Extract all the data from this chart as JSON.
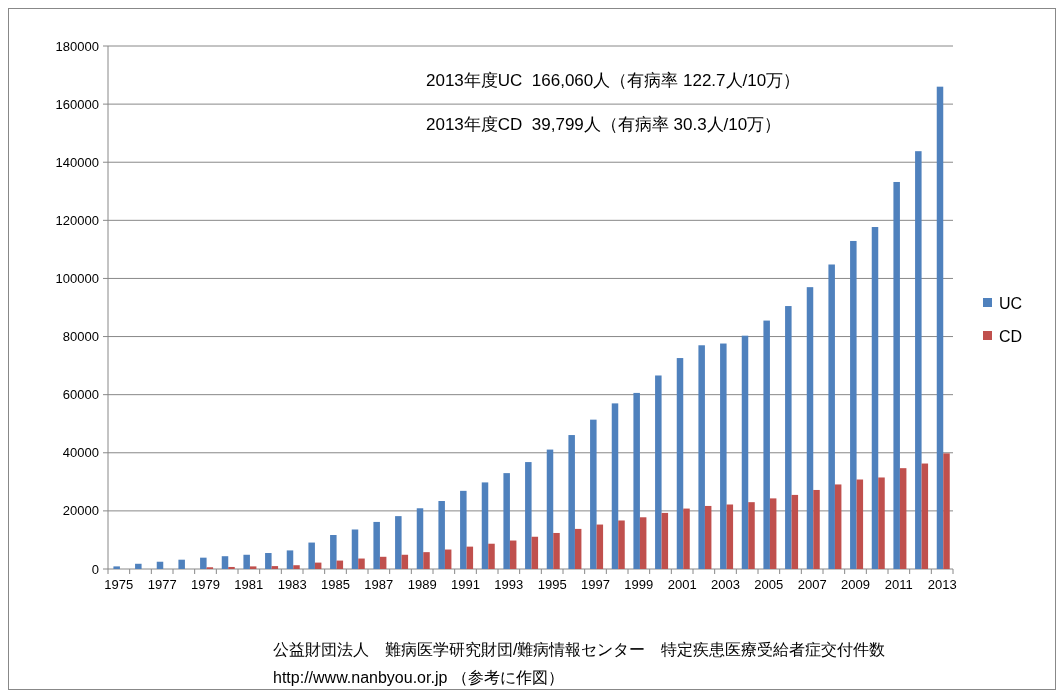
{
  "chart_data": {
    "type": "bar",
    "categories": [
      "1975",
      null,
      "1977",
      null,
      "1979",
      null,
      "1981",
      null,
      "1983",
      null,
      "1985",
      null,
      "1987",
      null,
      "1989",
      null,
      "1991",
      null,
      "1993",
      null,
      "1995",
      null,
      "1997",
      null,
      "1999",
      null,
      "2001",
      null,
      "2003",
      null,
      "2005",
      null,
      "2007",
      null,
      "2009",
      null,
      "2011",
      null,
      "2013"
    ],
    "series": [
      {
        "name": "UC",
        "color": "#4f81bd",
        "values": [
          900,
          1800,
          2500,
          3200,
          3900,
          4400,
          4900,
          5500,
          6400,
          9100,
          11700,
          13600,
          16200,
          18200,
          20900,
          23400,
          26900,
          29800,
          33000,
          36800,
          41100,
          46100,
          51400,
          57000,
          60600,
          66600,
          72600,
          77000,
          77600,
          80300,
          85500,
          90500,
          97000,
          104800,
          112900,
          117700,
          133200,
          143800,
          166000
        ]
      },
      {
        "name": "CD",
        "color": "#c0504d",
        "values": [
          0,
          0,
          null,
          null,
          600,
          700,
          900,
          1000,
          1300,
          2200,
          2900,
          3600,
          4200,
          4900,
          5800,
          6700,
          7700,
          8700,
          9800,
          11100,
          12400,
          13800,
          15300,
          16700,
          17800,
          19300,
          20800,
          21700,
          22200,
          23000,
          24300,
          25500,
          27200,
          29100,
          30800,
          31500,
          34700,
          36300,
          39800
        ]
      }
    ],
    "ylim": [
      0,
      180000
    ],
    "yticks": [
      0,
      20000,
      40000,
      60000,
      80000,
      100000,
      120000,
      140000,
      160000,
      180000
    ],
    "grid": "y",
    "legend": "right",
    "annotations": [
      "2013年度UC  166,060人（有病率 122.7人/10万）",
      "2013年度CD  39,799人（有病率 30.3人/10万）",
      "公益財団法人　難病医学研究財団/難病情報センター　特定疾患医療受給者症交付件数",
      "http://www.nanbyou.or.jp （参考に作図）"
    ]
  }
}
